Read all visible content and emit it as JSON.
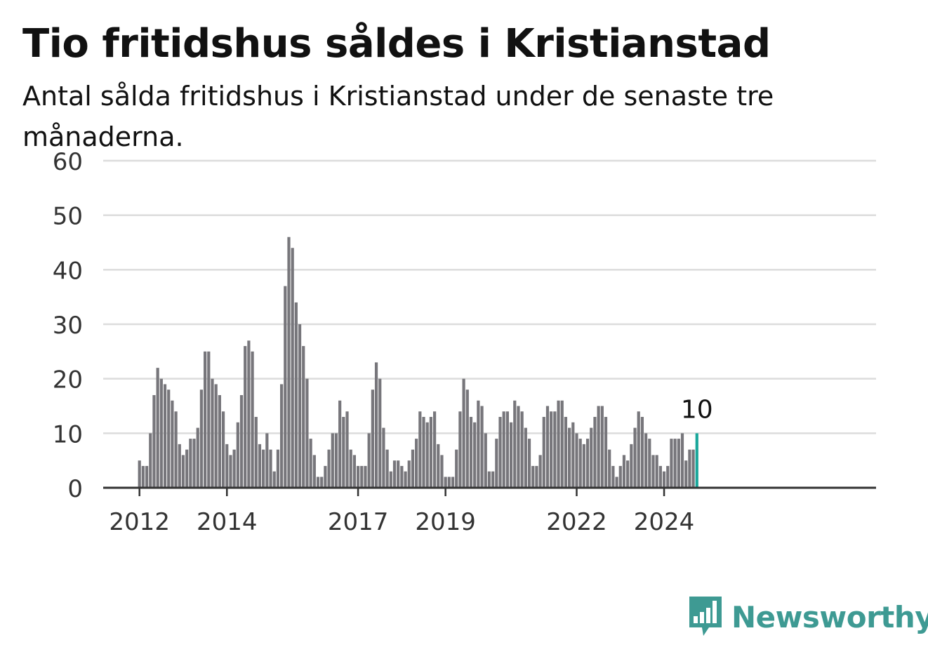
{
  "title": "Tio fritidshus såldes i Kristianstad",
  "subtitle": "Antal sålda fritidshus i Kristianstad under de senaste tre månaderna.",
  "brand": "Newsworthy",
  "colors": {
    "bar": "#77767b",
    "highlight": "#1aa79b",
    "grid": "#dcdcdc",
    "axis": "#333333",
    "brand": "#3e9a93"
  },
  "chart_data": {
    "type": "bar",
    "title": "Tio fritidshus såldes i Kristianstad",
    "subtitle": "Antal sålda fritidshus i Kristianstad under de senaste tre månaderna.",
    "xlabel": "",
    "ylabel": "",
    "ylim": [
      0,
      60
    ],
    "yticks": [
      0,
      10,
      20,
      30,
      40,
      50,
      60
    ],
    "grid": true,
    "x_start": "2012-01",
    "xtick_labels": [
      "2012",
      "2014",
      "2017",
      "2019",
      "2022",
      "2024"
    ],
    "highlight_label": "10",
    "values": [
      5,
      4,
      4,
      10,
      17,
      22,
      20,
      19,
      18,
      16,
      14,
      8,
      6,
      7,
      9,
      9,
      11,
      18,
      25,
      25,
      20,
      19,
      17,
      14,
      8,
      6,
      7,
      12,
      17,
      26,
      27,
      25,
      13,
      8,
      7,
      10,
      7,
      3,
      7,
      19,
      37,
      46,
      44,
      34,
      30,
      26,
      20,
      9,
      6,
      2,
      2,
      4,
      7,
      10,
      10,
      16,
      13,
      14,
      7,
      6,
      4,
      4,
      4,
      10,
      18,
      23,
      20,
      11,
      7,
      3,
      5,
      5,
      4,
      3,
      5,
      7,
      9,
      14,
      13,
      12,
      13,
      14,
      8,
      6,
      2,
      2,
      2,
      7,
      14,
      20,
      18,
      13,
      12,
      16,
      15,
      10,
      3,
      3,
      9,
      13,
      14,
      14,
      12,
      16,
      15,
      14,
      11,
      9,
      4,
      4,
      6,
      13,
      15,
      14,
      14,
      16,
      16,
      13,
      11,
      12,
      10,
      9,
      8,
      9,
      11,
      13,
      15,
      15,
      13,
      7,
      4,
      2,
      4,
      6,
      5,
      8,
      11,
      14,
      13,
      10,
      9,
      6,
      6,
      4,
      3,
      4,
      9,
      9,
      9,
      10,
      5,
      7,
      7,
      10
    ]
  }
}
